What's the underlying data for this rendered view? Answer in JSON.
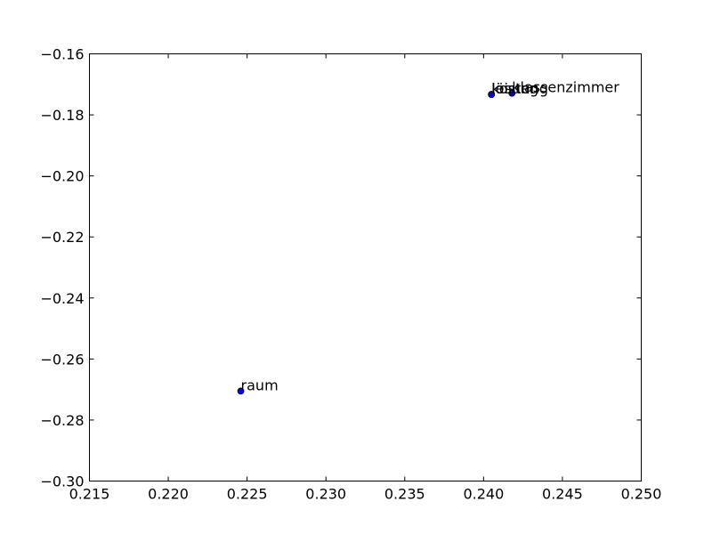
{
  "chart_data": {
    "type": "scatter",
    "title": "",
    "xlabel": "",
    "ylabel": "",
    "xlim": [
      0.215,
      0.25
    ],
    "ylim": [
      -0.3,
      -0.16
    ],
    "x_ticks": [
      0.215,
      0.22,
      0.225,
      0.23,
      0.235,
      0.24,
      0.245,
      0.25
    ],
    "y_ticks": [
      -0.3,
      -0.28,
      -0.26,
      -0.24,
      -0.22,
      -0.2,
      -0.18,
      -0.16
    ],
    "x_tick_labels": [
      "0.215",
      "0.220",
      "0.225",
      "0.230",
      "0.235",
      "0.240",
      "0.245",
      "0.250"
    ],
    "y_tick_labels": [
      "−0.30",
      "−0.28",
      "−0.26",
      "−0.24",
      "−0.22",
      "−0.20",
      "−0.18",
      "−0.16"
    ],
    "grid": false,
    "point_color": "#0000ff",
    "points": [
      {
        "x": 0.2246,
        "y": -0.2705,
        "label": "raum"
      },
      {
        "x": 0.2405,
        "y": -0.1733,
        "label": "leistung"
      },
      {
        "x": 0.2405,
        "y": -0.1733,
        "label": "kosten"
      },
      {
        "x": 0.2405,
        "y": -0.1733,
        "label": "lösung"
      },
      {
        "x": 0.2418,
        "y": -0.1729,
        "label": "klassenzimmer"
      }
    ]
  }
}
